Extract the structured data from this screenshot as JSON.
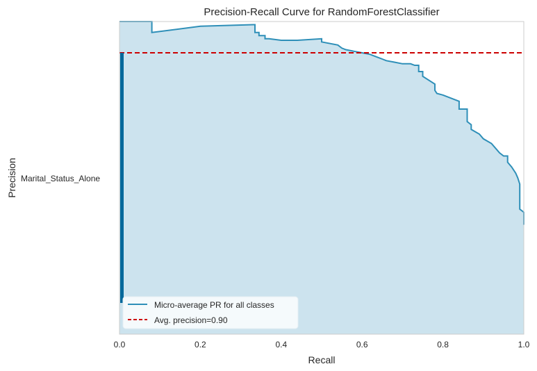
{
  "chart_data": {
    "type": "line",
    "title": "Precision-Recall Curve for RandomForestClassifier",
    "xlabel": "Recall",
    "ylabel": "Precision",
    "class_label": "Marital_Status_Alone",
    "xlim": [
      0,
      1
    ],
    "ylim": [
      0,
      1.0
    ],
    "x_ticks": [
      "0.0",
      "0.2",
      "0.4",
      "0.6",
      "0.8",
      "1.0"
    ],
    "x_tick_values": [
      0.0,
      0.2,
      0.4,
      0.6,
      0.8,
      1.0
    ],
    "grid": false,
    "legend_position": "lower-left",
    "colors": {
      "curve": "#2e8fb8",
      "fill": "#cce3ee",
      "avg_line": "#cc0000",
      "marker_bar": "#00689b",
      "legend_bg": "#f5fafc",
      "axes_edge": "#cccccc"
    },
    "series": [
      {
        "name": "Micro-average PR for all classes",
        "x": [
          0.0,
          0.08,
          0.08,
          0.2,
          0.33,
          0.335,
          0.335,
          0.345,
          0.345,
          0.36,
          0.36,
          0.37,
          0.4,
          0.44,
          0.5,
          0.5,
          0.54,
          0.55,
          0.56,
          0.58,
          0.6,
          0.62,
          0.64,
          0.65,
          0.66,
          0.68,
          0.7,
          0.72,
          0.73,
          0.74,
          0.74,
          0.75,
          0.75,
          0.78,
          0.78,
          0.785,
          0.8,
          0.82,
          0.84,
          0.84,
          0.86,
          0.86,
          0.87,
          0.87,
          0.89,
          0.9,
          0.92,
          0.93,
          0.94,
          0.95,
          0.96,
          0.96,
          0.97,
          0.98,
          0.985,
          0.99,
          0.99,
          1.0,
          1.0
        ],
        "y": [
          1.0,
          1.0,
          0.965,
          0.985,
          0.99,
          0.99,
          0.965,
          0.965,
          0.955,
          0.955,
          0.945,
          0.945,
          0.94,
          0.94,
          0.945,
          0.935,
          0.925,
          0.915,
          0.91,
          0.905,
          0.9,
          0.895,
          0.885,
          0.88,
          0.875,
          0.87,
          0.865,
          0.865,
          0.86,
          0.86,
          0.84,
          0.84,
          0.825,
          0.8,
          0.78,
          0.77,
          0.765,
          0.755,
          0.745,
          0.72,
          0.72,
          0.68,
          0.67,
          0.655,
          0.64,
          0.625,
          0.61,
          0.595,
          0.58,
          0.57,
          0.57,
          0.55,
          0.535,
          0.515,
          0.5,
          0.48,
          0.4,
          0.39,
          0.35
        ]
      },
      {
        "name": "Avg. precision=0.90",
        "y_constant": 0.9
      }
    ]
  }
}
